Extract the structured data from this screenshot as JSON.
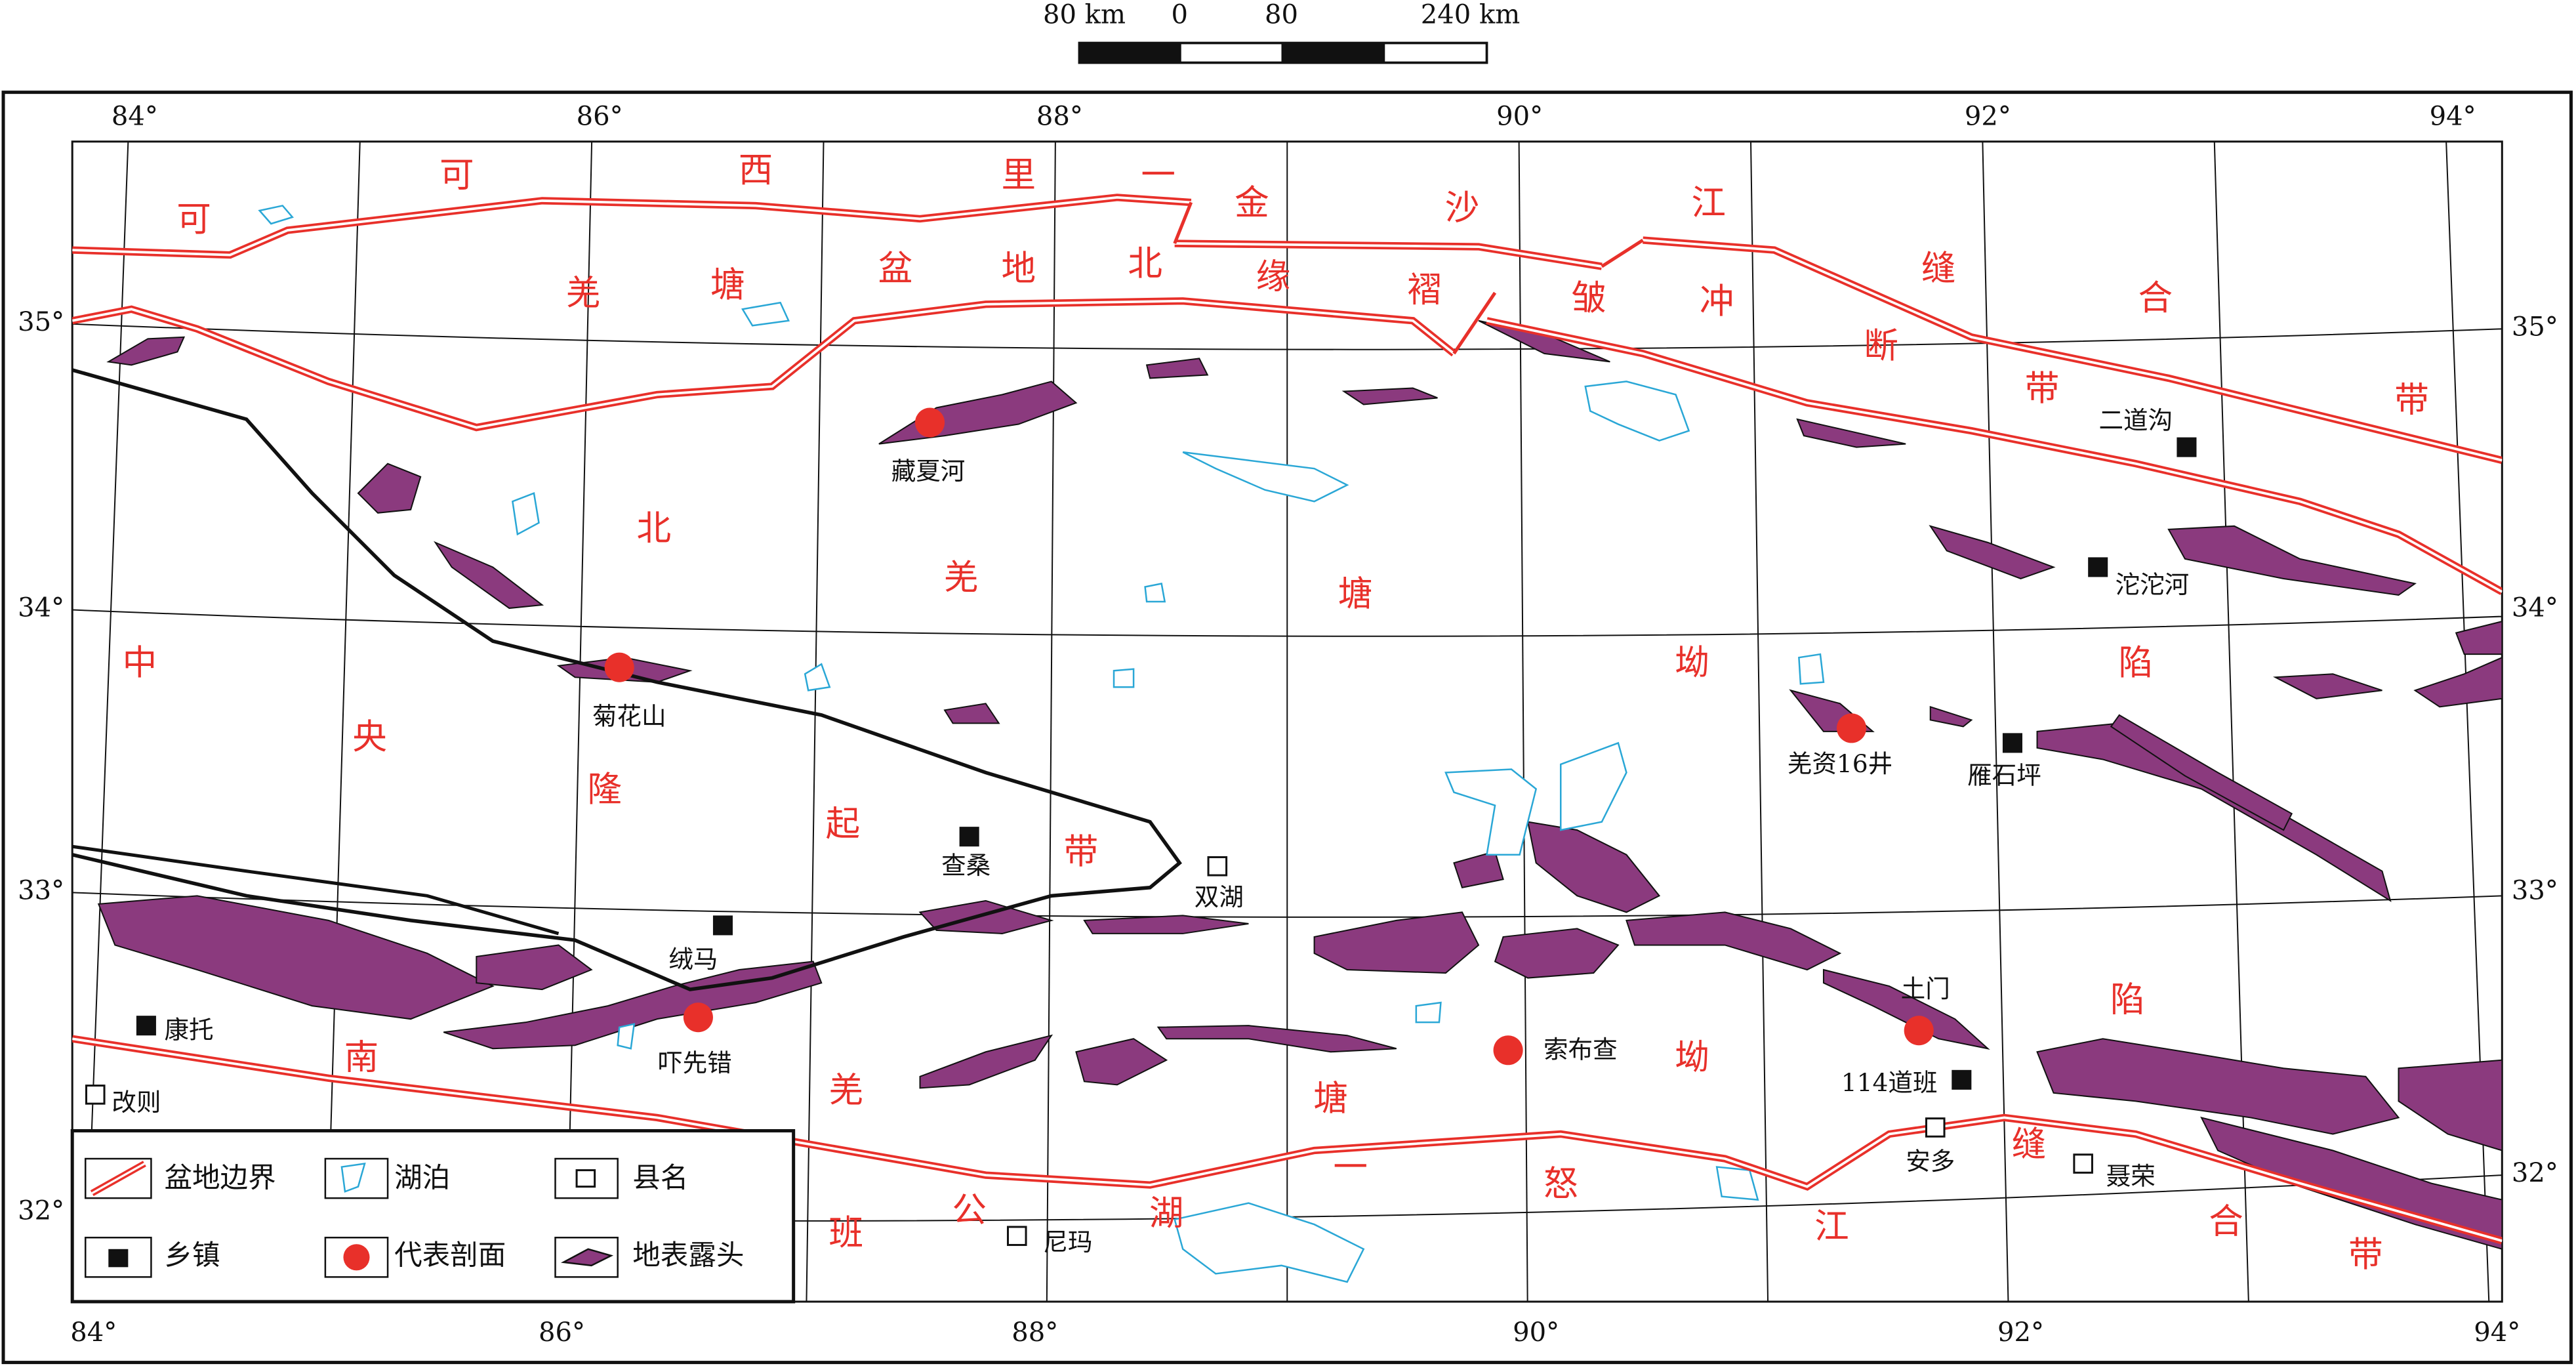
{
  "scale_bar": [
    "80 km",
    "0",
    "80",
    "240 km"
  ],
  "graticule": {
    "top": [
      "84°",
      "86°",
      "88°",
      "90°",
      "92°",
      "94°"
    ],
    "bottom": [
      "84°",
      "86°",
      "88°",
      "90°",
      "92°",
      "94°"
    ],
    "left": [
      "35°",
      "34°",
      "33°",
      "32°"
    ],
    "right": [
      "35°",
      "34°",
      "33°",
      "32°"
    ]
  },
  "regions": [
    {
      "chars": [
        "可",
        "可",
        "西",
        "里",
        "一",
        "金",
        "沙",
        "江",
        "缝",
        "合",
        "带"
      ]
    },
    {
      "chars": [
        "羌",
        "塘",
        "盆",
        "地",
        "北",
        "缘",
        "褶",
        "皱",
        "冲",
        "断",
        "带"
      ]
    },
    {
      "chars": [
        "北",
        "羌",
        "塘",
        "坳",
        "陷"
      ]
    },
    {
      "chars": [
        "中",
        "央",
        "隆",
        "起",
        "带"
      ]
    },
    {
      "chars": [
        "南",
        "羌",
        "塘",
        "坳",
        "陷"
      ]
    },
    {
      "chars": [
        "班",
        "公",
        "湖",
        "一",
        "怒",
        "江",
        "缝",
        "合",
        "带"
      ]
    }
  ],
  "places": [
    "藏夏河",
    "菊花山",
    "羌资16井",
    "雁石坪",
    "二道沟",
    "沱沱河",
    "查桑",
    "双湖",
    "绒马",
    "康托",
    "吓先错",
    "索布查",
    "土门",
    "114道班",
    "改则",
    "安多",
    "聂荣",
    "尼玛"
  ],
  "legend": [
    "盆地边界",
    "湖泊",
    "县名",
    "乡镇",
    "代表剖面",
    "地表露头"
  ]
}
